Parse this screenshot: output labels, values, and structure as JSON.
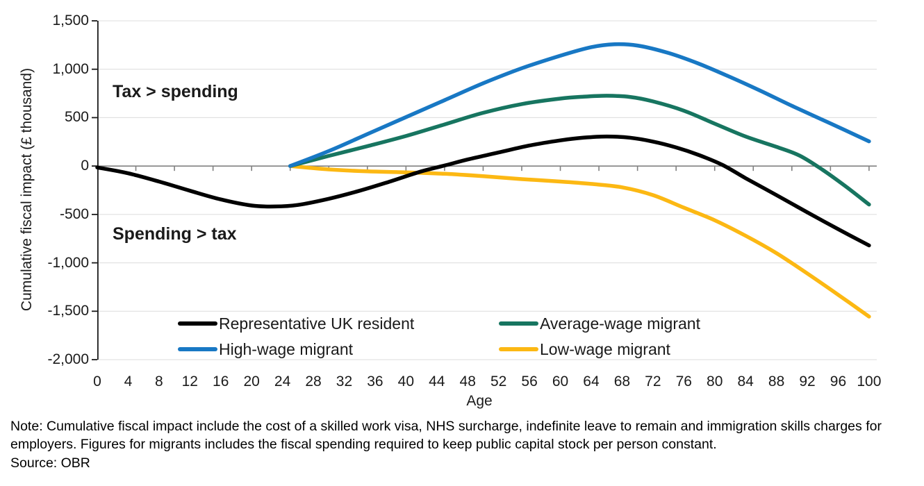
{
  "annotations": {
    "upper": "Tax > spending",
    "lower": "Spending > tax"
  },
  "note": "Note: Cumulative fiscal impact include the cost of a skilled work visa, NHS surcharge, indefinite leave to remain and immigration skills charges for employers. Figures for migrants includes the fiscal spending required to keep public capital stock per person constant.",
  "source": "Source: OBR",
  "chart_data": {
    "type": "line",
    "title": "",
    "xlabel": "Age",
    "ylabel": "Cumulative fiscal impact (£ thousand)",
    "xlim": [
      0,
      101
    ],
    "ylim": [
      -2000,
      1500
    ],
    "grid": true,
    "legend_position": "inside-bottom-center",
    "x_ticks": [
      0,
      4,
      8,
      12,
      16,
      20,
      24,
      28,
      32,
      36,
      40,
      44,
      48,
      52,
      56,
      60,
      64,
      68,
      72,
      76,
      80,
      84,
      88,
      92,
      96,
      100
    ],
    "x_axis_tick_marks_every": 5,
    "y_ticks": [
      {
        "value": 1500,
        "label": "1,500"
      },
      {
        "value": 1000,
        "label": "1,000"
      },
      {
        "value": 500,
        "label": "500"
      },
      {
        "value": 0,
        "label": "0"
      },
      {
        "value": -500,
        "label": "-500"
      },
      {
        "value": -1000,
        "label": "-1,000"
      },
      {
        "value": -1500,
        "label": "-1,500"
      },
      {
        "value": -2000,
        "label": "-2,000"
      }
    ],
    "colors": {
      "uk_resident": "#000000",
      "high_wage": "#1878C4",
      "average_wage": "#177560",
      "low_wage": "#FCB813",
      "gridline": "#dcdcdc",
      "zero_axis": "#808080",
      "y_axis": "#1a1a1a"
    },
    "series": [
      {
        "name": "Representative UK resident",
        "color": "#000000",
        "points": [
          [
            0,
            -15
          ],
          [
            4,
            -75
          ],
          [
            8,
            -160
          ],
          [
            12,
            -255
          ],
          [
            16,
            -345
          ],
          [
            20,
            -408
          ],
          [
            23,
            -418
          ],
          [
            26,
            -402
          ],
          [
            30,
            -338
          ],
          [
            34,
            -255
          ],
          [
            38,
            -158
          ],
          [
            42,
            -55
          ],
          [
            45,
            5
          ],
          [
            48,
            68
          ],
          [
            52,
            140
          ],
          [
            56,
            212
          ],
          [
            60,
            265
          ],
          [
            63,
            293
          ],
          [
            66,
            305
          ],
          [
            69,
            293
          ],
          [
            72,
            253
          ],
          [
            75,
            192
          ],
          [
            78,
            112
          ],
          [
            81,
            12
          ],
          [
            84,
            -125
          ],
          [
            88,
            -300
          ],
          [
            92,
            -478
          ],
          [
            96,
            -652
          ],
          [
            100,
            -820
          ]
        ]
      },
      {
        "name": "High-wage migrant",
        "color": "#1878C4",
        "points": [
          [
            25,
            0
          ],
          [
            30,
            155
          ],
          [
            35,
            330
          ],
          [
            40,
            505
          ],
          [
            45,
            680
          ],
          [
            50,
            855
          ],
          [
            55,
            1010
          ],
          [
            60,
            1140
          ],
          [
            64,
            1228
          ],
          [
            67,
            1258
          ],
          [
            70,
            1245
          ],
          [
            74,
            1168
          ],
          [
            78,
            1055
          ],
          [
            82,
            920
          ],
          [
            86,
            775
          ],
          [
            90,
            622
          ],
          [
            95,
            440
          ],
          [
            100,
            255
          ]
        ]
      },
      {
        "name": "Average-wage migrant",
        "color": "#177560",
        "points": [
          [
            25,
            0
          ],
          [
            30,
            105
          ],
          [
            35,
            205
          ],
          [
            40,
            310
          ],
          [
            45,
            430
          ],
          [
            50,
            550
          ],
          [
            55,
            640
          ],
          [
            60,
            697
          ],
          [
            63,
            716
          ],
          [
            66,
            726
          ],
          [
            69,
            714
          ],
          [
            72,
            668
          ],
          [
            76,
            572
          ],
          [
            80,
            438
          ],
          [
            84,
            305
          ],
          [
            88,
            198
          ],
          [
            91,
            108
          ],
          [
            94,
            -40
          ],
          [
            97,
            -212
          ],
          [
            100,
            -398
          ]
        ]
      },
      {
        "name": "Low-wage migrant",
        "color": "#FCB813",
        "points": [
          [
            25,
            0
          ],
          [
            30,
            -35
          ],
          [
            35,
            -55
          ],
          [
            40,
            -65
          ],
          [
            45,
            -80
          ],
          [
            50,
            -105
          ],
          [
            55,
            -135
          ],
          [
            60,
            -160
          ],
          [
            64,
            -185
          ],
          [
            68,
            -220
          ],
          [
            72,
            -300
          ],
          [
            76,
            -430
          ],
          [
            80,
            -560
          ],
          [
            84,
            -720
          ],
          [
            88,
            -900
          ],
          [
            92,
            -1110
          ],
          [
            96,
            -1330
          ],
          [
            100,
            -1555
          ]
        ]
      }
    ],
    "legend_order": [
      0,
      2,
      1,
      3
    ]
  }
}
